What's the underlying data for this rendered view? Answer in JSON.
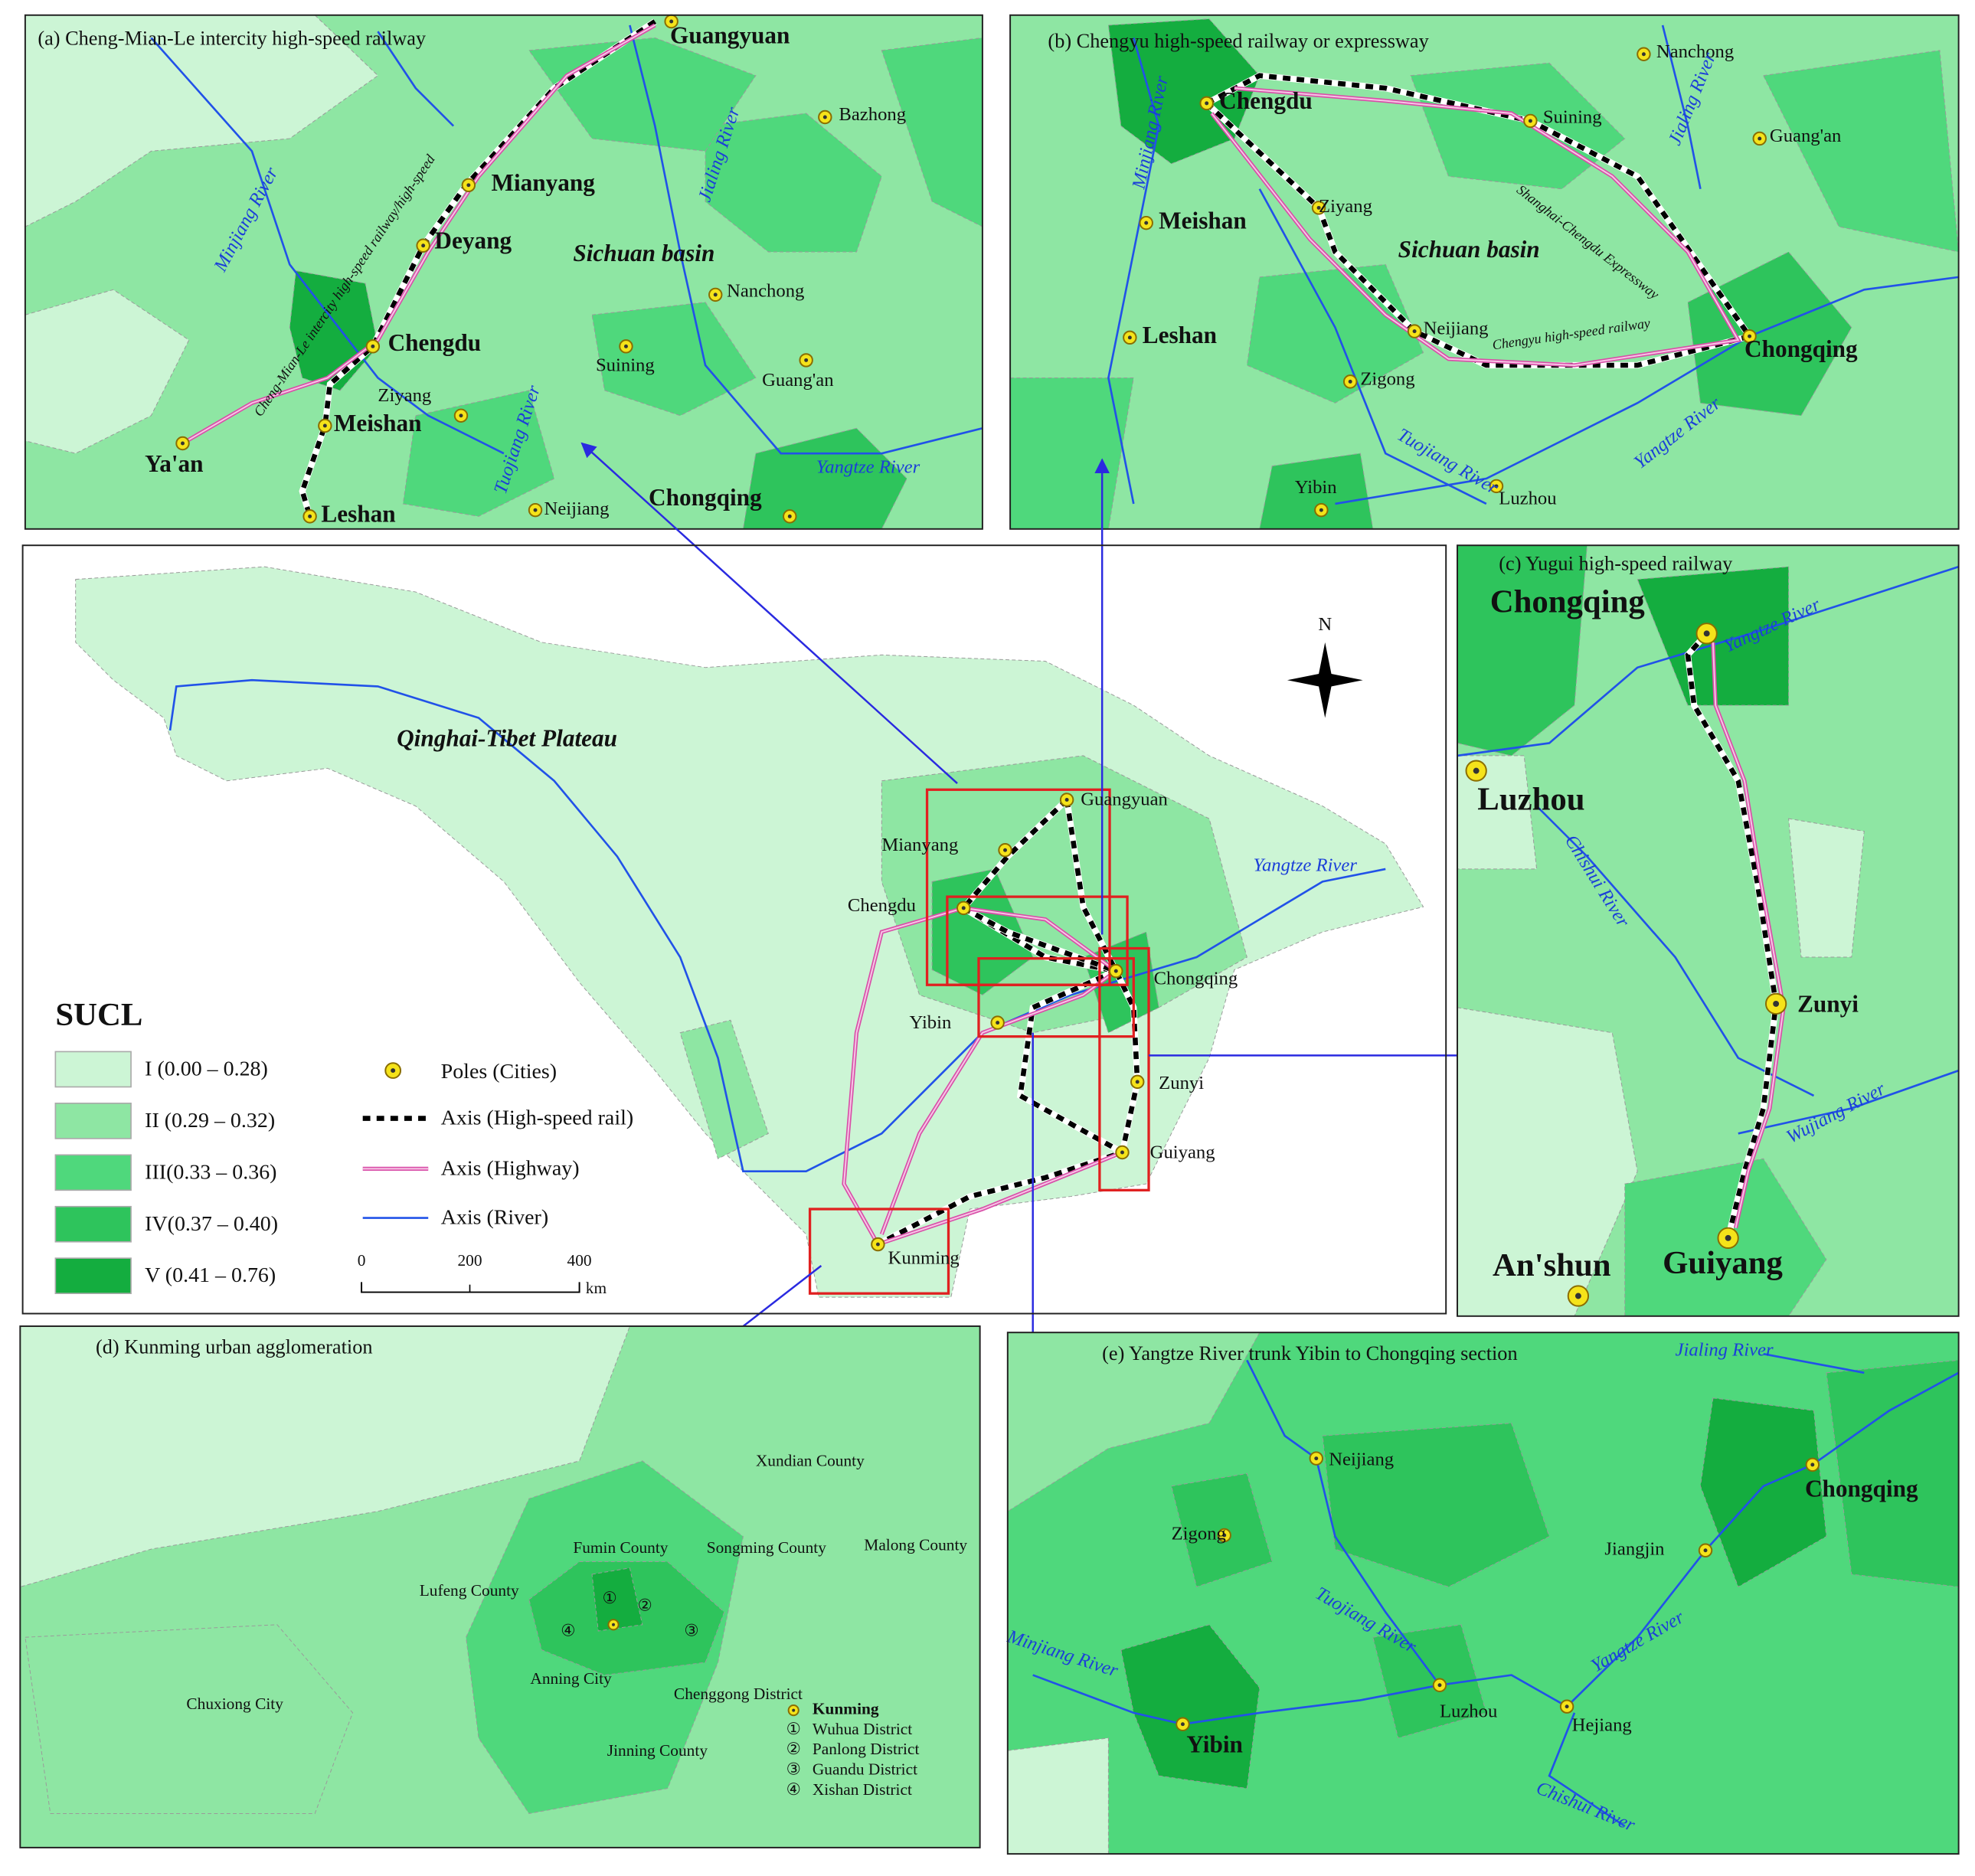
{
  "panels": {
    "a": {
      "title": "(a) Cheng-Mian-Le intercity high-speed railway",
      "cities": [
        "Guangyuan",
        "Bazhong",
        "Mianyang",
        "Deyang",
        "Nanchong",
        "Chengdu",
        "Suining",
        "Ziyang",
        "Guang'an",
        "Meishan",
        "Ya'an",
        "Leshan",
        "Neijiang",
        "Chongqing"
      ],
      "labels": [
        "Minjiang River",
        "Sichuan basin",
        "Jialing River",
        "Tuojiang River",
        "Yangtze River",
        "Cheng-Mian-Le intercity high-speed railway/high-speed"
      ]
    },
    "b": {
      "title": "(b) Chengyu high-speed railway or expressway",
      "cities": [
        "Nanchong",
        "Chengdu",
        "Suining",
        "Guang'an",
        "Meishan",
        "Ziyang",
        "Neijiang",
        "Leshan",
        "Chongqing",
        "Zigong",
        "Yibin",
        "Luzhou"
      ],
      "labels": [
        "Minjiang River",
        "Sichuan basin",
        "Jialing River",
        "Tuojiang River",
        "Yangtze River",
        "Shanghai-Chengdu Expressway",
        "Chengyu high-speed railway"
      ]
    },
    "c": {
      "title": "(c) Yugui high-speed railway",
      "cities": [
        "Chongqing",
        "Luzhou",
        "Zunyi",
        "Guiyang",
        "An'shun"
      ],
      "labels": [
        "Yangtze River",
        "Chishui River",
        "Wujiang River"
      ]
    },
    "d": {
      "title": "(d) Kunming urban agglomeration",
      "labels": [
        "Xundian County",
        "Fumin County",
        "Songming County",
        "Malong County",
        "Lufeng County",
        "Anning City",
        "Chenggong District",
        "Chuxiong City",
        "Jinning County"
      ],
      "markers": [
        "①",
        "②",
        "③",
        "④"
      ],
      "legend": [
        "Kunming",
        "Wuhua District",
        "Panlong District",
        "Guandu District",
        "Xishan District"
      ]
    },
    "e": {
      "title": "(e) Yangtze River trunk Yibin to Chongqing section",
      "cities": [
        "Neijiang",
        "Chongqing",
        "Zigong",
        "Jiangjin",
        "Luzhou",
        "Hejiang",
        "Yibin"
      ],
      "labels": [
        "Jialing River",
        "Tuojiang River",
        "Yangtze River",
        "Minjiang River",
        "Chishui River"
      ]
    }
  },
  "main": {
    "cities": [
      "Guangyuan",
      "Mianyang",
      "Chengdu",
      "Chongqing",
      "Yibin",
      "Zunyi",
      "Guiyang",
      "Kunming"
    ],
    "labels": [
      "Qinghai-Tibet Plateau",
      "Yangtze River"
    ],
    "north": "N",
    "legend": {
      "title": "SUCL",
      "classes": [
        "I  (0.00 – 0.28)",
        "II (0.29 – 0.32)",
        "III(0.33 – 0.36)",
        "IV(0.37 – 0.40)",
        "V (0.41 – 0.76)"
      ],
      "items": [
        "Poles (Cities)",
        "Axis (High-speed rail)",
        "Axis (Highway)",
        "Axis (River)"
      ]
    },
    "scale": [
      "0",
      "200",
      "400",
      "km"
    ]
  }
}
